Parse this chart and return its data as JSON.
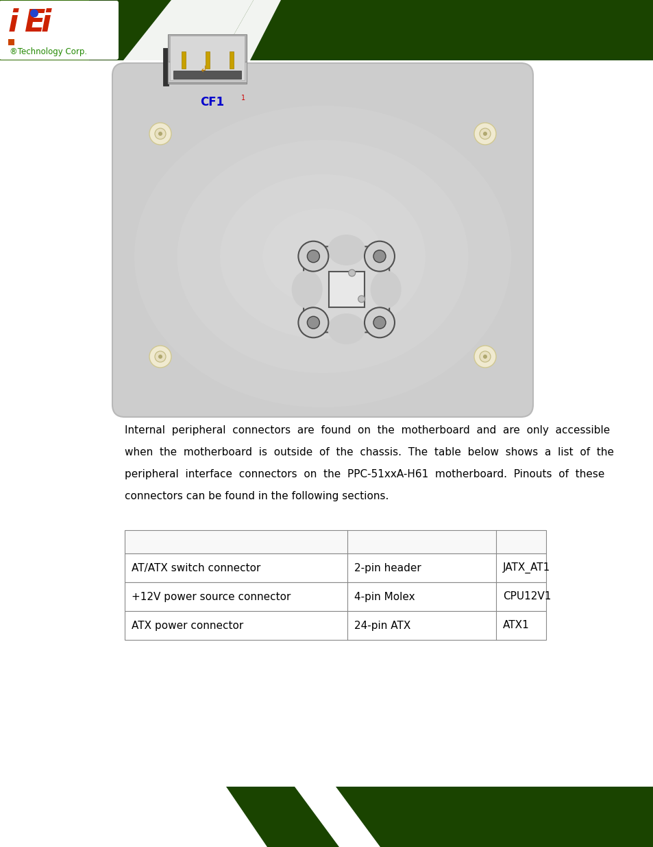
{
  "bg_color": "#ffffff",
  "header_green": "#3a8a00",
  "header_dark_green": "#1a5000",
  "paragraph_text_lines": [
    "Internal  peripheral  connectors  are  found  on  the  motherboard  and  are  only  accessible",
    "when  the  motherboard  is  outside  of  the  chassis.  The  table  below  shows  a  list  of  the",
    "peripheral  interface  connectors  on  the  PPC-51xxA-H61  motherboard.  Pinouts  of  these",
    "connectors can be found in the following sections."
  ],
  "table_rows": [
    [
      "AT/ATX switch connector",
      "2-pin header",
      "JATX_AT1"
    ],
    [
      "+12V power source connector",
      "4-pin Molex",
      "CPU12V1"
    ],
    [
      "ATX power connector",
      "24-pin ATX",
      "ATX1"
    ]
  ],
  "cf1_label": "CF1",
  "board_color_center": "#d8d8d8",
  "board_color_edge": "#c0c0c0",
  "mount_color": "#d0d0d0",
  "mount_dark": "#606060",
  "screw_cream": "#f0ead0",
  "screw_inner": "#e8e0c0"
}
